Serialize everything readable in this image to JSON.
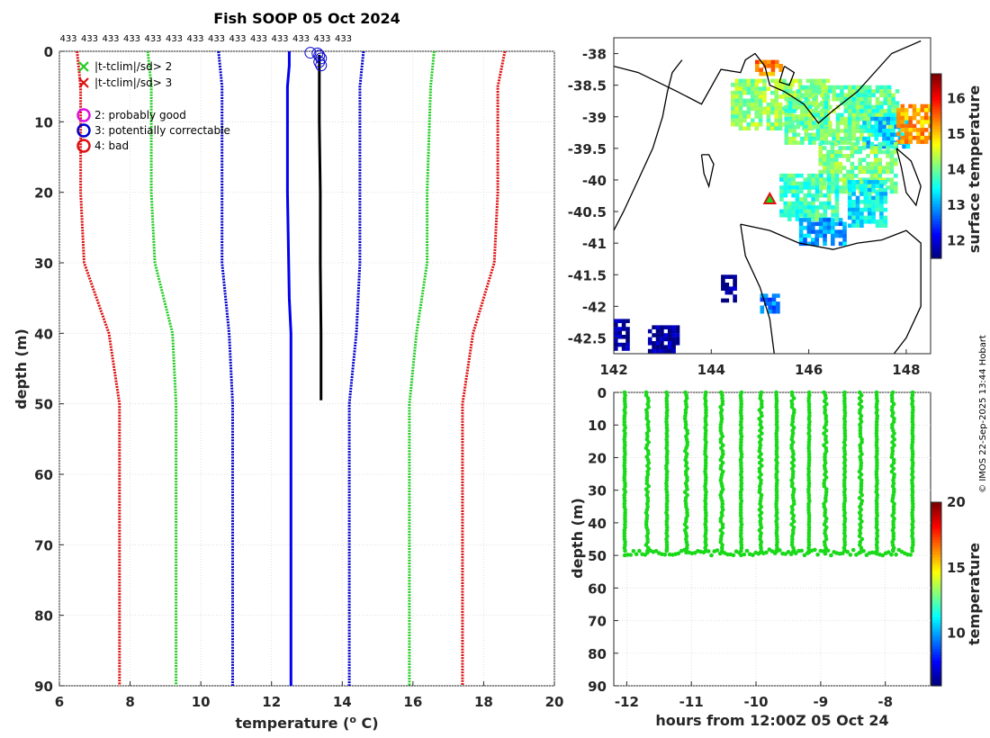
{
  "chart_data": [
    {
      "type": "line",
      "title": "Fish SOOP 05 Oct 2024",
      "xlabel": "temperature (",
      "xlabel_sup": "o",
      "xlabel_end": " C)",
      "ylabel": "depth (m)",
      "xlim": [
        6,
        20
      ],
      "ylim": [
        90,
        0
      ],
      "xticks": [
        6,
        8,
        10,
        12,
        14,
        16,
        18,
        20
      ],
      "yticks": [
        0,
        10,
        20,
        30,
        40,
        50,
        60,
        70,
        80,
        90
      ],
      "count_label": "433",
      "count_repeat": 14,
      "climatology": [
        {
          "name": "clim -3sd",
          "color": "#dd1111",
          "points": [
            [
              6.5,
              0
            ],
            [
              6.6,
              5
            ],
            [
              6.6,
              20
            ],
            [
              6.7,
              30
            ],
            [
              7.4,
              40
            ],
            [
              7.7,
              50
            ],
            [
              7.7,
              90
            ]
          ]
        },
        {
          "name": "clim -2sd",
          "color": "#22cc22",
          "points": [
            [
              8.5,
              0
            ],
            [
              8.6,
              5
            ],
            [
              8.6,
              20
            ],
            [
              8.7,
              30
            ],
            [
              9.2,
              40
            ],
            [
              9.3,
              50
            ],
            [
              9.3,
              90
            ]
          ]
        },
        {
          "name": "clim -1sd",
          "color": "#0000cc",
          "points": [
            [
              10.5,
              0
            ],
            [
              10.6,
              5
            ],
            [
              10.6,
              20
            ],
            [
              10.6,
              30
            ],
            [
              10.8,
              40
            ],
            [
              10.9,
              50
            ],
            [
              10.9,
              90
            ]
          ]
        },
        {
          "name": "clim +1sd",
          "color": "#0000cc",
          "points": [
            [
              14.6,
              0
            ],
            [
              14.5,
              5
            ],
            [
              14.5,
              20
            ],
            [
              14.5,
              30
            ],
            [
              14.4,
              40
            ],
            [
              14.2,
              50
            ],
            [
              14.2,
              90
            ]
          ]
        },
        {
          "name": "clim +2sd",
          "color": "#22cc22",
          "points": [
            [
              16.6,
              0
            ],
            [
              16.5,
              5
            ],
            [
              16.4,
              20
            ],
            [
              16.4,
              30
            ],
            [
              16.1,
              40
            ],
            [
              15.9,
              50
            ],
            [
              15.9,
              90
            ]
          ]
        },
        {
          "name": "clim +3sd",
          "color": "#dd1111",
          "points": [
            [
              18.6,
              0
            ],
            [
              18.4,
              5
            ],
            [
              18.4,
              20
            ],
            [
              18.3,
              30
            ],
            [
              17.7,
              40
            ],
            [
              17.4,
              50
            ],
            [
              17.4,
              90
            ]
          ]
        }
      ],
      "mean_profile": {
        "color": "#0000ee",
        "points": [
          [
            12.5,
            0
          ],
          [
            12.5,
            2
          ],
          [
            12.45,
            5
          ],
          [
            12.45,
            20
          ],
          [
            12.5,
            35
          ],
          [
            12.55,
            40
          ],
          [
            12.55,
            90
          ]
        ]
      },
      "measured_profile": {
        "color": "#000000",
        "points": [
          [
            13.35,
            0.5
          ],
          [
            13.35,
            10
          ],
          [
            13.38,
            20
          ],
          [
            13.38,
            30
          ],
          [
            13.4,
            40
          ],
          [
            13.4,
            49.5
          ]
        ]
      },
      "flagged_points": [
        [
          13.1,
          0.2
        ],
        [
          13.3,
          0.3
        ],
        [
          13.35,
          0.6
        ],
        [
          13.4,
          1.0
        ],
        [
          13.35,
          1.5
        ],
        [
          13.4,
          2.0
        ]
      ],
      "legend": [
        {
          "marker": "x",
          "color": "#22cc22",
          "text": "|t-tclim|/sd> 2"
        },
        {
          "marker": "x",
          "color": "#dd1111",
          "text": "|t-tclim|/sd> 3"
        },
        {
          "marker": "o",
          "color": "#dd11dd",
          "text": "2: probably good"
        },
        {
          "marker": "o",
          "color": "#0000cc",
          "text": "3: potentially correctable"
        },
        {
          "marker": "o",
          "color": "#dd1111",
          "text": "4: bad"
        }
      ]
    },
    {
      "type": "heatmap",
      "title": "",
      "xlim": [
        142,
        148.5
      ],
      "ylim": [
        -42.75,
        -37.75
      ],
      "xticks": [
        142,
        144,
        146,
        148
      ],
      "yticks": [
        -38,
        -38.5,
        -39,
        -39.5,
        -40,
        -40.5,
        -41,
        -41.5,
        -42,
        -42.5
      ],
      "colorbar_label": "surface temperature",
      "colorbar_range": [
        11.5,
        16.7
      ],
      "colorbar_ticks": [
        12,
        13,
        14,
        15,
        16
      ],
      "station_marker": [
        145.2,
        -40.3
      ],
      "coastline": [
        [
          [
            142.0,
            -38.2
          ],
          [
            142.5,
            -38.3
          ],
          [
            143.3,
            -38.6
          ],
          [
            143.8,
            -38.8
          ],
          [
            144.2,
            -38.25
          ],
          [
            144.6,
            -38.3
          ],
          [
            144.7,
            -38.1
          ],
          [
            144.9,
            -38.0
          ],
          [
            145.1,
            -38.2
          ],
          [
            145.2,
            -38.5
          ],
          [
            145.5,
            -38.6
          ],
          [
            145.9,
            -38.8
          ],
          [
            146.2,
            -39.1
          ],
          [
            146.5,
            -38.9
          ],
          [
            147.0,
            -38.6
          ],
          [
            147.7,
            -38.0
          ],
          [
            148.3,
            -37.8
          ]
        ],
        [
          [
            143.8,
            -39.6
          ],
          [
            143.85,
            -39.9
          ],
          [
            143.95,
            -40.1
          ],
          [
            144.05,
            -39.75
          ],
          [
            143.95,
            -39.6
          ],
          [
            143.8,
            -39.6
          ]
        ],
        [
          [
            144.6,
            -40.7
          ],
          [
            145.2,
            -40.8
          ],
          [
            145.8,
            -41.0
          ],
          [
            146.5,
            -41.1
          ],
          [
            147.0,
            -41.0
          ],
          [
            147.5,
            -40.95
          ],
          [
            148.0,
            -40.8
          ],
          [
            148.3,
            -41.0
          ],
          [
            148.3,
            -42.0
          ],
          [
            148.0,
            -42.5
          ],
          [
            147.6,
            -42.9
          ]
        ],
        [
          [
            144.6,
            -40.7
          ],
          [
            144.7,
            -41.2
          ],
          [
            145.0,
            -41.7
          ],
          [
            145.2,
            -42.2
          ],
          [
            145.3,
            -42.8
          ]
        ],
        [
          [
            147.8,
            -39.5
          ],
          [
            148.1,
            -39.7
          ],
          [
            148.3,
            -40.1
          ],
          [
            148.2,
            -40.4
          ],
          [
            148.0,
            -40.2
          ],
          [
            147.9,
            -39.8
          ],
          [
            147.8,
            -39.5
          ]
        ],
        [
          [
            143.4,
            -38.1
          ],
          [
            143.2,
            -38.3
          ],
          [
            143.1,
            -38.6
          ],
          [
            143.0,
            -39.0
          ],
          [
            142.8,
            -39.5
          ],
          [
            142.5,
            -40.0
          ],
          [
            142.2,
            -40.5
          ],
          [
            142.0,
            -40.8
          ]
        ],
        [
          [
            145.5,
            -38.2
          ],
          [
            145.7,
            -38.3
          ],
          [
            145.6,
            -38.5
          ],
          [
            145.4,
            -38.45
          ],
          [
            145.5,
            -38.2
          ]
        ]
      ],
      "sst_patches": [
        {
          "lon": [
            144.4,
            146.4
          ],
          "lat": [
            -38.4,
            -39.2
          ],
          "value": 14.2
        },
        {
          "lon": [
            145.5,
            147.2
          ],
          "lat": [
            -38.5,
            -39.4
          ],
          "value": 14.0
        },
        {
          "lon": [
            146.8,
            147.8
          ],
          "lat": [
            -38.5,
            -39.3
          ],
          "value": 13.9
        },
        {
          "lon": [
            147.1,
            148.0
          ],
          "lat": [
            -39.0,
            -39.5
          ],
          "value": 13.2
        },
        {
          "lon": [
            147.8,
            148.5
          ],
          "lat": [
            -38.8,
            -39.4
          ],
          "value": 15.2
        },
        {
          "lon": [
            146.2,
            147.8
          ],
          "lat": [
            -39.4,
            -40.2
          ],
          "value": 14.1
        },
        {
          "lon": [
            146.8,
            147.6
          ],
          "lat": [
            -40.0,
            -40.7
          ],
          "value": 13.4
        },
        {
          "lon": [
            145.4,
            146.6
          ],
          "lat": [
            -39.9,
            -40.6
          ],
          "value": 13.8
        },
        {
          "lon": [
            145.8,
            146.7
          ],
          "lat": [
            -40.6,
            -41.0
          ],
          "value": 13.0
        },
        {
          "lon": [
            144.9,
            145.4
          ],
          "lat": [
            -38.1,
            -38.3
          ],
          "value": 15.4
        },
        {
          "lon": [
            142.7,
            143.3
          ],
          "lat": [
            -42.3,
            -42.7
          ],
          "value": 11.6
        },
        {
          "lon": [
            144.2,
            144.5
          ],
          "lat": [
            -41.5,
            -41.9
          ],
          "value": 11.6
        },
        {
          "lon": [
            142.0,
            142.3
          ],
          "lat": [
            -42.2,
            -42.7
          ],
          "value": 11.6
        },
        {
          "lon": [
            145.0,
            145.4
          ],
          "lat": [
            -41.8,
            -42.1
          ],
          "value": 12.8
        }
      ]
    },
    {
      "type": "scatter",
      "xlabel": "hours from 12:00Z 05 Oct 24",
      "ylabel": "depth (m)",
      "xlim": [
        -12.2,
        -7.3
      ],
      "ylim": [
        90,
        0
      ],
      "xticks": [
        -12,
        -11,
        -10,
        -9,
        -8
      ],
      "yticks": [
        0,
        10,
        20,
        30,
        40,
        50,
        60,
        70,
        80,
        90
      ],
      "colorbar_label": "temperature",
      "colorbar_range": [
        6,
        20
      ],
      "colorbar_ticks": [
        10,
        15,
        20
      ],
      "point_color": "#19d919",
      "cast_times": [
        -12.03,
        -11.68,
        -11.38,
        -11.08,
        -10.78,
        -10.53,
        -10.23,
        -9.93,
        -9.68,
        -9.43,
        -9.18,
        -8.93,
        -8.63,
        -8.38,
        -8.13,
        -7.88,
        -7.58
      ],
      "cast_depth_range": [
        0,
        49
      ]
    }
  ],
  "footer": {
    "credit": "© IMOS 22-Sep-2025 13:44 Hobart"
  }
}
